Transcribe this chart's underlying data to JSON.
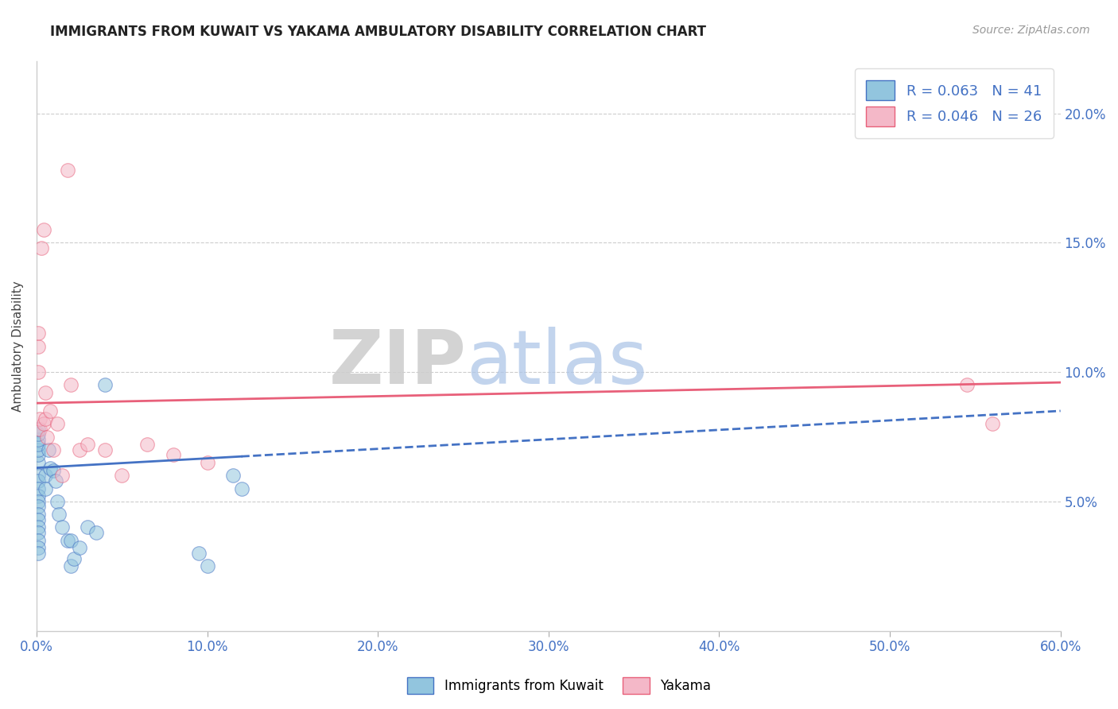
{
  "title": "IMMIGRANTS FROM KUWAIT VS YAKAMA AMBULATORY DISABILITY CORRELATION CHART",
  "source_text": "Source: ZipAtlas.com",
  "ylabel": "Ambulatory Disability",
  "xlim": [
    0.0,
    0.6
  ],
  "ylim": [
    0.0,
    0.22
  ],
  "x_ticks": [
    0.0,
    0.1,
    0.2,
    0.3,
    0.4,
    0.5,
    0.6
  ],
  "x_tick_labels": [
    "0.0%",
    "10.0%",
    "20.0%",
    "30.0%",
    "40.0%",
    "50.0%",
    "60.0%"
  ],
  "y_ticks": [
    0.05,
    0.1,
    0.15,
    0.2
  ],
  "y_tick_labels": [
    "5.0%",
    "10.0%",
    "15.0%",
    "20.0%"
  ],
  "legend_r1": "R = 0.063",
  "legend_n1": "N = 41",
  "legend_r2": "R = 0.046",
  "legend_n2": "N = 26",
  "color_blue": "#92c5de",
  "color_pink": "#f4b8c8",
  "color_blue_dark": "#4472c4",
  "color_pink_dark": "#e8607a",
  "color_text_blue": "#4472c4",
  "watermark_zip": "ZIP",
  "watermark_atlas": "atlas",
  "blue_x": [
    0.001,
    0.001,
    0.001,
    0.001,
    0.001,
    0.001,
    0.001,
    0.001,
    0.001,
    0.001,
    0.001,
    0.001,
    0.001,
    0.001,
    0.001,
    0.001,
    0.001,
    0.001,
    0.001,
    0.001,
    0.005,
    0.005,
    0.007,
    0.008,
    0.01,
    0.011,
    0.012,
    0.013,
    0.015,
    0.018,
    0.02,
    0.02,
    0.022,
    0.025,
    0.03,
    0.035,
    0.04,
    0.095,
    0.1,
    0.115,
    0.12
  ],
  "blue_y": [
    0.065,
    0.068,
    0.07,
    0.072,
    0.074,
    0.076,
    0.078,
    0.06,
    0.058,
    0.055,
    0.052,
    0.05,
    0.048,
    0.045,
    0.043,
    0.04,
    0.038,
    0.035,
    0.032,
    0.03,
    0.06,
    0.055,
    0.07,
    0.063,
    0.062,
    0.058,
    0.05,
    0.045,
    0.04,
    0.035,
    0.035,
    0.025,
    0.028,
    0.032,
    0.04,
    0.038,
    0.095,
    0.03,
    0.025,
    0.06,
    0.055
  ],
  "pink_x": [
    0.001,
    0.001,
    0.001,
    0.002,
    0.002,
    0.003,
    0.004,
    0.004,
    0.005,
    0.005,
    0.006,
    0.008,
    0.01,
    0.012,
    0.015,
    0.018,
    0.02,
    0.025,
    0.03,
    0.04,
    0.05,
    0.065,
    0.08,
    0.1,
    0.545,
    0.56
  ],
  "pink_y": [
    0.11,
    0.115,
    0.1,
    0.078,
    0.082,
    0.148,
    0.155,
    0.08,
    0.082,
    0.092,
    0.075,
    0.085,
    0.07,
    0.08,
    0.06,
    0.178,
    0.095,
    0.07,
    0.072,
    0.07,
    0.06,
    0.072,
    0.068,
    0.065,
    0.095,
    0.08
  ],
  "blue_trend_x": [
    0.0,
    0.6
  ],
  "blue_trend_y": [
    0.063,
    0.085
  ],
  "pink_trend_x": [
    0.0,
    0.6
  ],
  "pink_trend_y": [
    0.088,
    0.096
  ]
}
